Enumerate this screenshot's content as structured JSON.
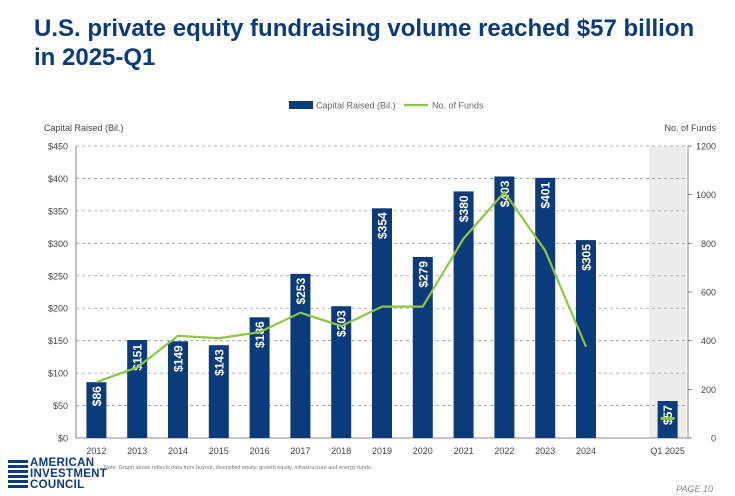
{
  "title": "U.S. private equity fundraising volume reached $57 billion in 2025-Q1",
  "footer": {
    "logo_line1": "AMERICAN",
    "logo_line2": "INVESTMENT",
    "logo_line3": "COUNCIL",
    "note": "Note: Graph above reflects data from buyout, diversified equity, growth equity, infrastructure and energy funds.",
    "page": "PAGE 10"
  },
  "colors": {
    "bar": "#0b3b7a",
    "line": "#8dc63f",
    "title": "#0b3b7a",
    "highlight": "#ececec"
  },
  "chart_data": {
    "type": "bar+line",
    "categories": [
      "2012",
      "2013",
      "2014",
      "2015",
      "2016",
      "2017",
      "2018",
      "2019",
      "2020",
      "2021",
      "2022",
      "2023",
      "2024",
      "",
      "Q1 2025"
    ],
    "series": [
      {
        "name": "Capital Raised (Bil.)",
        "type": "bar",
        "axis": "left",
        "values": [
          86,
          151,
          149,
          143,
          186,
          253,
          203,
          354,
          279,
          380,
          403,
          401,
          305,
          null,
          57
        ],
        "labels": [
          "$86",
          "$151",
          "$149",
          "$143",
          "$186",
          "$253",
          "$203",
          "$354",
          "$279",
          "$380",
          "$403",
          "$401",
          "$305",
          "",
          "$57"
        ]
      },
      {
        "name": "No. of Funds",
        "type": "line",
        "axis": "right",
        "values": [
          230,
          290,
          420,
          410,
          435,
          515,
          460,
          540,
          540,
          820,
          1010,
          770,
          375,
          null,
          80
        ]
      }
    ],
    "ylabel_left": "Capital Raised (Bil.)",
    "ylabel_right": "No. of Funds",
    "ylim_left": [
      0,
      450
    ],
    "ylim_right": [
      0,
      1200
    ],
    "yticks_left": [
      "$0",
      "$50",
      "$100",
      "$150",
      "$200",
      "$250",
      "$300",
      "$350",
      "$400",
      "$450"
    ],
    "yticks_right": [
      "0",
      "200",
      "400",
      "600",
      "800",
      "1000",
      "1200"
    ],
    "highlight_category": "Q1 2025",
    "grid": "horizontal dashed",
    "legend": "top-center"
  }
}
